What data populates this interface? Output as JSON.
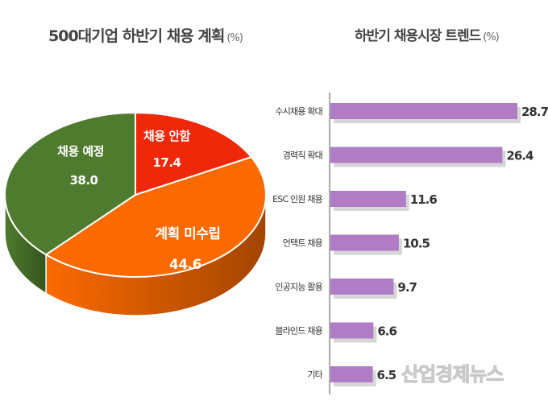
{
  "chart_data": [
    {
      "type": "pie",
      "title": "500대기업 하반기 채용 계획",
      "unit": "(%)",
      "slices": [
        {
          "label": "채용 안함",
          "value": 17.4,
          "color": "#f0280a"
        },
        {
          "label": "계획 미수립",
          "value": 44.6,
          "color": "#fb6a00"
        },
        {
          "label": "채용 예정",
          "value": 38.0,
          "color": "#4f7b2f"
        }
      ],
      "style": "3d"
    },
    {
      "type": "bar",
      "orientation": "horizontal",
      "title": "하반기 채용시장 트렌드",
      "unit": "(%)",
      "categories": [
        "수시채용 확대",
        "경력직 확대",
        "ESC 인원 채용",
        "언택트 채용",
        "인공지능 활용",
        "블라인드 채용",
        "기타"
      ],
      "values": [
        28.7,
        26.4,
        11.6,
        10.5,
        9.7,
        6.6,
        6.5
      ],
      "color": "#b07cc6",
      "grid": false
    }
  ],
  "watermark": "산업경제뉴스"
}
